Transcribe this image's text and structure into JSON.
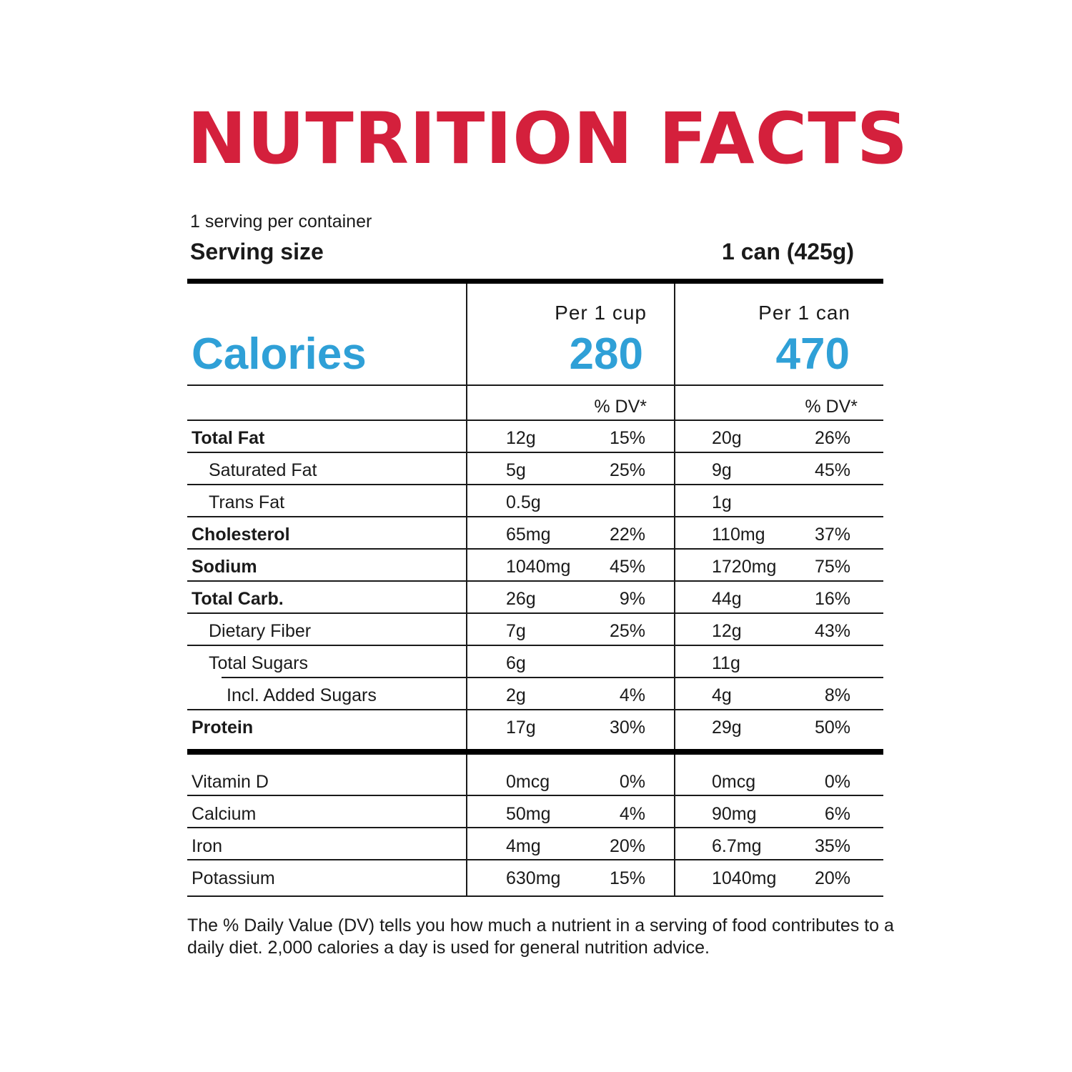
{
  "title": "NUTRITION FACTS",
  "servings_per_container": "1 serving per container",
  "serving_size": {
    "label": "Serving size",
    "value": "1 can (425g)"
  },
  "calories": {
    "label": "Calories",
    "col1": {
      "header": "Per 1 cup",
      "value": "280"
    },
    "col2": {
      "header": "Per 1 can",
      "value": "470"
    }
  },
  "dv_header": "% DV*",
  "nutrients": [
    {
      "name": "Total Fat",
      "cup_amount": "12g",
      "cup_dv": "15%",
      "can_amount": "20g",
      "can_dv": "26%"
    },
    {
      "name": "Saturated Fat",
      "cup_amount": "5g",
      "cup_dv": "25%",
      "can_amount": "9g",
      "can_dv": "45%"
    },
    {
      "name": "Trans Fat",
      "cup_amount": "0.5g",
      "cup_dv": "",
      "can_amount": "1g",
      "can_dv": ""
    },
    {
      "name": "Cholesterol",
      "cup_amount": "65mg",
      "cup_dv": "22%",
      "can_amount": "110mg",
      "can_dv": "37%"
    },
    {
      "name": "Sodium",
      "cup_amount": "1040mg",
      "cup_dv": "45%",
      "can_amount": "1720mg",
      "can_dv": "75%"
    },
    {
      "name": "Total Carb.",
      "cup_amount": "26g",
      "cup_dv": "9%",
      "can_amount": "44g",
      "can_dv": "16%"
    },
    {
      "name": "Dietary Fiber",
      "cup_amount": "7g",
      "cup_dv": "25%",
      "can_amount": "12g",
      "can_dv": "43%"
    },
    {
      "name": "Total Sugars",
      "cup_amount": "6g",
      "cup_dv": "",
      "can_amount": "11g",
      "can_dv": ""
    },
    {
      "name": "Incl. Added Sugars",
      "cup_amount": "2g",
      "cup_dv": "4%",
      "can_amount": "4g",
      "can_dv": "8%"
    },
    {
      "name": "Protein",
      "cup_amount": "17g",
      "cup_dv": "30%",
      "can_amount": "29g",
      "can_dv": "50%"
    }
  ],
  "micronutrients": [
    {
      "name": "Vitamin D",
      "cup_amount": "0mcg",
      "cup_dv": "0%",
      "can_amount": "0mcg",
      "can_dv": "0%"
    },
    {
      "name": "Calcium",
      "cup_amount": "50mg",
      "cup_dv": "4%",
      "can_amount": "90mg",
      "can_dv": "6%"
    },
    {
      "name": "Iron",
      "cup_amount": "4mg",
      "cup_dv": "20%",
      "can_amount": "6.7mg",
      "can_dv": "35%"
    },
    {
      "name": "Potassium",
      "cup_amount": "630mg",
      "cup_dv": "15%",
      "can_amount": "1040mg",
      "can_dv": "20%"
    }
  ],
  "footnote": "The % Daily Value (DV) tells you how much a nutrient in a serving of food contributes to a daily diet. 2,000 calories a day is used for general nutrition advice.",
  "colors": {
    "title": "#d4203c",
    "calories": "#2fa0d7",
    "text": "#1a1a1a"
  }
}
